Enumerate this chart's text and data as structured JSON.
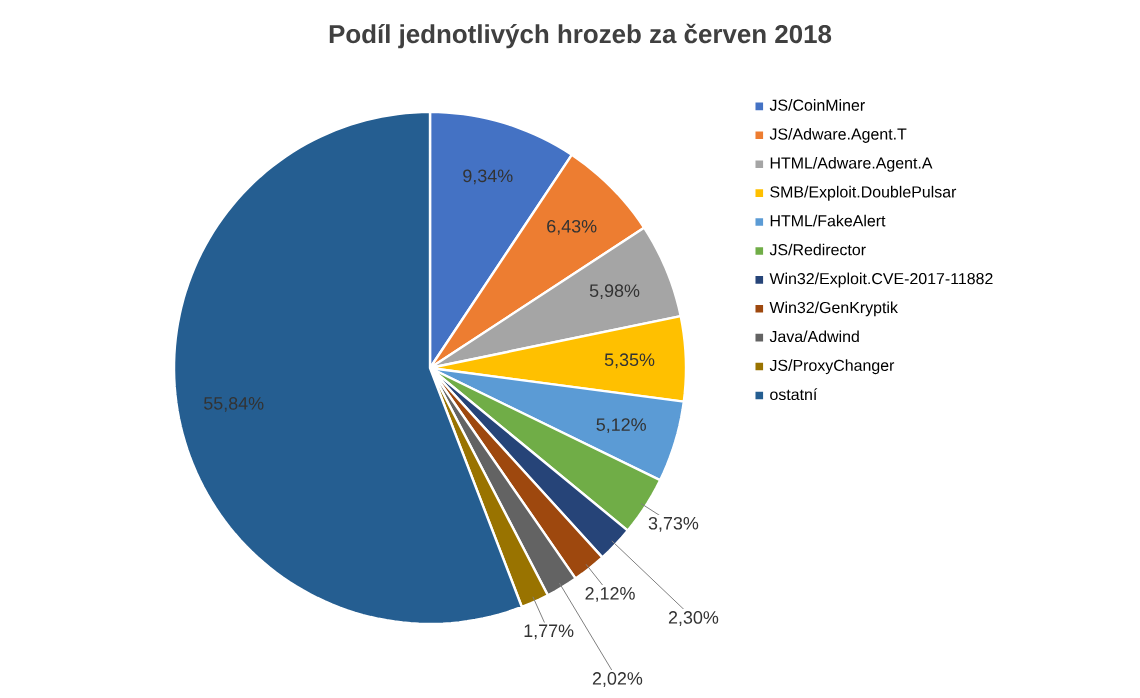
{
  "chart_data": {
    "type": "pie",
    "title": "Podíl jednotlivých hrozeb za červen 2018",
    "categories": [
      "JS/CoinMiner",
      "JS/Adware.Agent.T",
      "HTML/Adware.Agent.A",
      "SMB/Exploit.DoublePulsar",
      "HTML/FakeAlert",
      "JS/Redirector",
      "Win32/Exploit.CVE-2017-11882",
      "Win32/GenKryptik",
      "Java/Adwind",
      "JS/ProxyChanger",
      "ostatní"
    ],
    "values": [
      9.34,
      6.43,
      5.98,
      5.35,
      5.12,
      3.73,
      2.3,
      2.12,
      2.02,
      1.77,
      55.84
    ],
    "value_labels": [
      "9,34%",
      "6,43%",
      "5,98%",
      "5,35%",
      "5,12%",
      "3,73%",
      "2,30%",
      "2,12%",
      "2,02%",
      "1,77%",
      "55,84%"
    ],
    "colors": [
      "#4472c4",
      "#ed7d31",
      "#a5a5a5",
      "#ffc000",
      "#5b9bd5",
      "#70ad47",
      "#264478",
      "#9e480e",
      "#636363",
      "#997300",
      "#255e91"
    ],
    "legend": "right"
  }
}
